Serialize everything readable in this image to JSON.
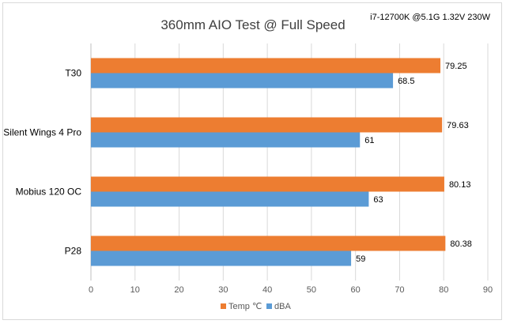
{
  "chart_data": {
    "type": "bar",
    "orientation": "horizontal",
    "title": "360mm AIO Test @ Full Speed",
    "subtitle": "i7-12700K @5.1G 1.32V 230W",
    "categories": [
      "T30",
      "Silent Wings 4 Pro",
      "Mobius 120 OC",
      "P28"
    ],
    "series": [
      {
        "name": "Temp ℃",
        "values": [
          79.25,
          79.63,
          80.13,
          80.38
        ],
        "color": "#ED7D31",
        "labels": [
          "79.25",
          "79.63",
          "80.13",
          "80.38"
        ]
      },
      {
        "name": "dBA",
        "values": [
          68.5,
          61,
          63,
          59
        ],
        "color": "#5B9BD5",
        "labels": [
          "68.5",
          "61",
          "63",
          "59"
        ]
      }
    ],
    "xlim": [
      0,
      90
    ],
    "xticks": [
      0,
      10,
      20,
      30,
      40,
      50,
      60,
      70,
      80,
      90
    ],
    "xlabel": "",
    "ylabel": "",
    "grid": true,
    "legend": "bottom"
  }
}
